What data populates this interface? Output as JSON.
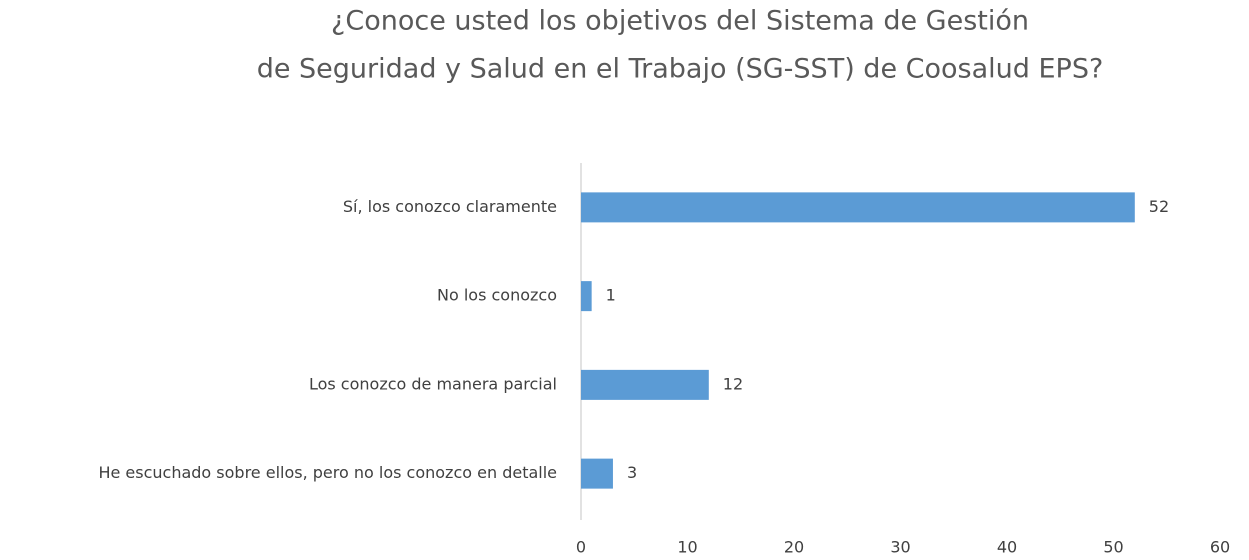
{
  "chart_data": {
    "type": "barh",
    "title": [
      "¿Conoce usted los objetivos del Sistema de Gestión",
      "de Seguridad y Salud en el Trabajo (SG-SST) de Coosalud EPS?"
    ],
    "categories": [
      "Sí, los conozco claramente",
      "No los conozco",
      "Los conozco de manera parcial",
      "He escuchado sobre ellos, pero no los conozco en detalle"
    ],
    "values": [
      52,
      1,
      12,
      3
    ],
    "color": "#5b9bd5",
    "xlim": [
      0,
      60
    ],
    "xticks": [
      0,
      10,
      20,
      30,
      40,
      50,
      60
    ],
    "grid": false
  }
}
